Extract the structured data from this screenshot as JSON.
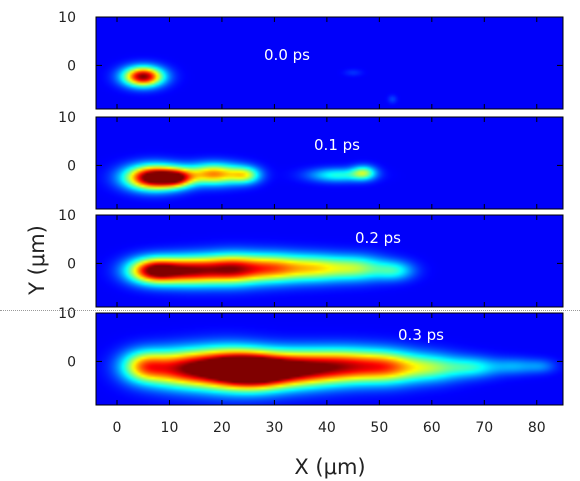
{
  "chart_data": {
    "type": "heatmap",
    "colormap": "jet",
    "background_color": "#0a1a8f",
    "xlabel": "X (μm)",
    "ylabel": "Y (μm)",
    "xlim": [
      -4,
      85
    ],
    "ylim": [
      -9,
      10
    ],
    "x_ticks": [
      0,
      10,
      20,
      30,
      40,
      50,
      60,
      70,
      80
    ],
    "y_ticks_per_panel": [
      10,
      0
    ],
    "panels": [
      {
        "time_label": "0.0 ps",
        "blobs": [
          {
            "x": 5,
            "y": -2.3,
            "sx": 2.6,
            "sy": 1.4,
            "a": 1.0
          },
          {
            "x": 45,
            "y": -1.5,
            "sx": 1.2,
            "sy": 0.5,
            "a": 0.06
          },
          {
            "x": 52.5,
            "y": -7,
            "sx": 0.6,
            "sy": 0.6,
            "a": 0.08
          }
        ]
      },
      {
        "time_label": "0.1 ps",
        "blobs": [
          {
            "x": 7,
            "y": -2.5,
            "sx": 3.6,
            "sy": 1.7,
            "a": 1.15
          },
          {
            "x": 11.5,
            "y": -2.6,
            "sx": 2.2,
            "sy": 1.3,
            "a": 0.55
          },
          {
            "x": 18.5,
            "y": -1.8,
            "sx": 3.6,
            "sy": 1.5,
            "a": 0.7
          },
          {
            "x": 24.5,
            "y": -2.0,
            "sx": 2.0,
            "sy": 1.2,
            "a": 0.42
          },
          {
            "x": 42,
            "y": -2.0,
            "sx": 3.8,
            "sy": 1.0,
            "a": 0.32
          },
          {
            "x": 47,
            "y": -1.5,
            "sx": 1.6,
            "sy": 1.0,
            "a": 0.4
          }
        ]
      },
      {
        "time_label": "0.2 ps",
        "blobs": [
          {
            "x": 7,
            "y": -1.5,
            "sx": 3.4,
            "sy": 1.8,
            "a": 0.95
          },
          {
            "x": 14,
            "y": -1.5,
            "sx": 4.0,
            "sy": 2.0,
            "a": 0.8
          },
          {
            "x": 22,
            "y": -1.2,
            "sx": 4.0,
            "sy": 2.1,
            "a": 0.82
          },
          {
            "x": 30,
            "y": -1.0,
            "sx": 4.0,
            "sy": 2.0,
            "a": 0.62
          },
          {
            "x": 38,
            "y": -1.0,
            "sx": 4.0,
            "sy": 1.9,
            "a": 0.5
          },
          {
            "x": 46,
            "y": -1.0,
            "sx": 3.8,
            "sy": 1.8,
            "a": 0.42
          },
          {
            "x": 53,
            "y": -1.5,
            "sx": 2.6,
            "sy": 1.4,
            "a": 0.28
          }
        ]
      },
      {
        "time_label": "0.3 ps",
        "blobs": [
          {
            "x": 5,
            "y": -1.0,
            "sx": 3.0,
            "sy": 2.2,
            "a": 0.5
          },
          {
            "x": 12,
            "y": -1.5,
            "sx": 5.0,
            "sy": 2.6,
            "a": 0.75
          },
          {
            "x": 21,
            "y": -1.5,
            "sx": 5.0,
            "sy": 2.8,
            "a": 0.95
          },
          {
            "x": 27,
            "y": -2.0,
            "sx": 4.5,
            "sy": 2.5,
            "a": 0.95
          },
          {
            "x": 35,
            "y": -1.5,
            "sx": 5.0,
            "sy": 2.5,
            "a": 0.82
          },
          {
            "x": 44,
            "y": -1.0,
            "sx": 5.0,
            "sy": 2.4,
            "a": 0.72
          },
          {
            "x": 52,
            "y": -1.2,
            "sx": 4.0,
            "sy": 2.3,
            "a": 0.55
          },
          {
            "x": 60,
            "y": -1.3,
            "sx": 4.0,
            "sy": 2.0,
            "a": 0.4
          },
          {
            "x": 68,
            "y": -1.2,
            "sx": 3.5,
            "sy": 1.5,
            "a": 0.28
          },
          {
            "x": 76,
            "y": -1.0,
            "sx": 3.0,
            "sy": 1.2,
            "a": 0.18
          },
          {
            "x": 81,
            "y": -1.0,
            "sx": 2.0,
            "sy": 1.0,
            "a": 0.12
          }
        ]
      }
    ]
  }
}
